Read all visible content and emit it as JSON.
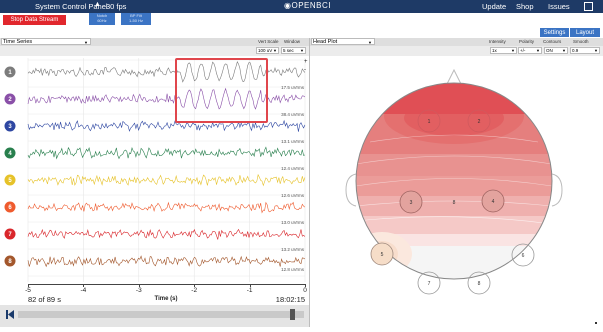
{
  "topbar": {
    "title": "System Control Panel",
    "fps": "30 fps",
    "logo": "OPENBCI",
    "menu": [
      "Update",
      "Shop",
      "Issues",
      "Help"
    ]
  },
  "controls": {
    "stop_label": "Stop Data Stream",
    "notch_label": "Notch",
    "notch_value": "60Hz",
    "bp_label": "BP Filt",
    "bp_value": "1-50 Hz",
    "settings_label": "Settings",
    "layout_label": "Layout"
  },
  "time_series": {
    "widget": "Time Series",
    "vert_scale_label": "Vert Scale",
    "window_label": "Window",
    "vert_scale_value": "100 uV",
    "window_value": "5 sec",
    "channels": [
      {
        "num": "1",
        "color": "#7c7c7c",
        "uvrms": ""
      },
      {
        "num": "2",
        "color": "#8a50a8",
        "uvrms": "17.5 uVrms"
      },
      {
        "num": "3",
        "color": "#2e47a2",
        "uvrms": "38.4 uVrms"
      },
      {
        "num": "4",
        "color": "#287f4d",
        "uvrms": "13.1 uVrms"
      },
      {
        "num": "5",
        "color": "#e6c229",
        "uvrms": "12.4 uVrms"
      },
      {
        "num": "6",
        "color": "#ef5b2e",
        "uvrms": "12.6 uVrms"
      },
      {
        "num": "7",
        "color": "#d9262b",
        "uvrms": "13.0 uVrms"
      },
      {
        "num": "8",
        "color": "#a3572c",
        "uvrms": "13.2 uVrms"
      }
    ],
    "last_uvrms": "12.8 uVrms",
    "x_ticks": [
      "-5",
      "-4",
      "-3",
      "-2",
      "-1",
      "0"
    ],
    "xlabel": "Time (s)",
    "counter": "82 of 89 s",
    "clock": "18:02:15",
    "plus": "+",
    "minus": "-"
  },
  "playback": {
    "position_fraction": 0.96
  },
  "head_plot": {
    "widget": "Head Plot",
    "labels": [
      "Intensity",
      "Polarity",
      "Contours",
      "Smooth"
    ],
    "values": [
      "1x",
      "+/-",
      "ON",
      "0.9"
    ],
    "electrodes": [
      "1",
      "2",
      "3",
      "8",
      "4",
      "5",
      "6",
      "7",
      "8"
    ]
  }
}
